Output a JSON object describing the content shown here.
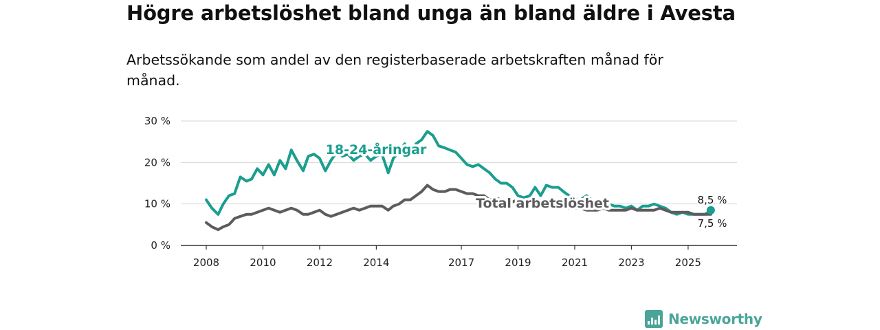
{
  "header": {
    "title": "Högre arbetslöshet bland unga än bland äldre i Avesta",
    "subtitle": "Arbetssökande som andel av den registerbaserade arbetskraften månad för månad."
  },
  "chart_data": {
    "type": "line",
    "title": "Högre arbetslöshet bland unga än bland äldre i Avesta",
    "subtitle": "Arbetssökande som andel av den registerbaserade arbetskraften månad för månad.",
    "xlabel": "",
    "ylabel": "",
    "x_range": [
      2008,
      2025.9
    ],
    "ylim": [
      0,
      30
    ],
    "y_ticks": [
      0,
      10,
      20,
      30
    ],
    "y_tick_labels": [
      "0 %",
      "10 %",
      "20 %",
      "30 %"
    ],
    "x_ticks": [
      2008,
      2010,
      2012,
      2014,
      2017,
      2019,
      2021,
      2023,
      2025
    ],
    "x_tick_labels": [
      "2008",
      "2010",
      "2012",
      "2014",
      "2017",
      "2019",
      "2021",
      "2023",
      "2025"
    ],
    "grid": true,
    "series": [
      {
        "name": "18-24-åringar",
        "color": "#1a9e8f",
        "x": [
          2008.0,
          2008.2,
          2008.42,
          2008.6,
          2008.8,
          2009.0,
          2009.2,
          2009.42,
          2009.6,
          2009.8,
          2010.0,
          2010.2,
          2010.4,
          2010.6,
          2010.8,
          2011.0,
          2011.2,
          2011.42,
          2011.6,
          2011.8,
          2012.0,
          2012.2,
          2012.4,
          2012.6,
          2012.8,
          2013.0,
          2013.2,
          2013.4,
          2013.6,
          2013.8,
          2014.0,
          2014.2,
          2014.42,
          2014.6,
          2014.8,
          2015.0,
          2015.2,
          2015.4,
          2015.6,
          2015.8,
          2016.0,
          2016.2,
          2016.42,
          2016.6,
          2016.8,
          2017.0,
          2017.2,
          2017.4,
          2017.6,
          2017.8,
          2018.0,
          2018.2,
          2018.4,
          2018.6,
          2018.8,
          2019.0,
          2019.2,
          2019.42,
          2019.6,
          2019.8,
          2020.0,
          2020.2,
          2020.42,
          2020.6,
          2020.8,
          2021.0,
          2021.2,
          2021.42,
          2021.6,
          2021.8,
          2022.0,
          2022.2,
          2022.4,
          2022.6,
          2022.8,
          2023.0,
          2023.2,
          2023.4,
          2023.6,
          2023.8,
          2024.0,
          2024.2,
          2024.4,
          2024.6,
          2024.8,
          2025.0,
          2025.2,
          2025.4,
          2025.6,
          2025.8
        ],
        "values": [
          11,
          9,
          7.5,
          10,
          12,
          12.5,
          16.5,
          15.5,
          16,
          18.5,
          17,
          19.5,
          17,
          20.5,
          18.5,
          23,
          20.5,
          18,
          21.5,
          22,
          21,
          18,
          20.5,
          22.5,
          21.5,
          22,
          20.5,
          21.5,
          22,
          20.5,
          21.5,
          22,
          17.5,
          21,
          22.5,
          24.5,
          22.5,
          24.5,
          25.5,
          27.5,
          26.5,
          24,
          23.5,
          23,
          22.5,
          21,
          19.5,
          19,
          19.5,
          18.5,
          17.5,
          16,
          15,
          15,
          14,
          12,
          11.5,
          12,
          14,
          12,
          14.5,
          14,
          14,
          13,
          12,
          11,
          11,
          12,
          11,
          10.5,
          10.5,
          10,
          9.5,
          9.5,
          9,
          9.5,
          8.5,
          9.5,
          9.5,
          10,
          9.5,
          9,
          8,
          7.5,
          8,
          7.5,
          7.5,
          7.5,
          7.5,
          8.5
        ]
      },
      {
        "name": "Total arbetslöshet",
        "color": "#5e5b5f",
        "x": [
          2008.0,
          2008.2,
          2008.42,
          2008.6,
          2008.8,
          2009.0,
          2009.2,
          2009.42,
          2009.6,
          2009.8,
          2010.0,
          2010.2,
          2010.4,
          2010.6,
          2010.8,
          2011.0,
          2011.2,
          2011.42,
          2011.6,
          2011.8,
          2012.0,
          2012.2,
          2012.4,
          2012.6,
          2012.8,
          2013.0,
          2013.2,
          2013.4,
          2013.6,
          2013.8,
          2014.0,
          2014.2,
          2014.42,
          2014.6,
          2014.8,
          2015.0,
          2015.2,
          2015.4,
          2015.6,
          2015.8,
          2016.0,
          2016.2,
          2016.42,
          2016.6,
          2016.8,
          2017.0,
          2017.2,
          2017.4,
          2017.6,
          2017.8,
          2018.0,
          2018.2,
          2018.4,
          2018.6,
          2018.8,
          2019.0,
          2019.2,
          2019.42,
          2019.6,
          2019.8,
          2020.0,
          2020.2,
          2020.42,
          2020.6,
          2020.8,
          2021.0,
          2021.2,
          2021.42,
          2021.6,
          2021.8,
          2022.0,
          2022.2,
          2022.4,
          2022.6,
          2022.8,
          2023.0,
          2023.2,
          2023.4,
          2023.6,
          2023.8,
          2024.0,
          2024.2,
          2024.4,
          2024.6,
          2024.8,
          2025.0,
          2025.2,
          2025.4,
          2025.6,
          2025.8
        ],
        "values": [
          5.5,
          4.5,
          3.8,
          4.5,
          5,
          6.5,
          7,
          7.5,
          7.5,
          8,
          8.5,
          9,
          8.5,
          8,
          8.5,
          9,
          8.5,
          7.5,
          7.5,
          8,
          8.5,
          7.5,
          7,
          7.5,
          8,
          8.5,
          9,
          8.5,
          9,
          9.5,
          9.5,
          9.5,
          8.5,
          9.5,
          10,
          11,
          11,
          12,
          13,
          14.5,
          13.5,
          13,
          13,
          13.5,
          13.5,
          13,
          12.5,
          12.5,
          12,
          12,
          11,
          11.5,
          11,
          11,
          10.5,
          11,
          10.5,
          10.5,
          10,
          9.5,
          9.5,
          9.5,
          9.5,
          9,
          9,
          9,
          9,
          8.5,
          8.5,
          8.5,
          9,
          8.5,
          8.5,
          8.5,
          8.5,
          9,
          8.5,
          8.5,
          8.5,
          8.5,
          9,
          8.5,
          8,
          8,
          8,
          8,
          7.5,
          7.5,
          7.5,
          7.5
        ]
      }
    ],
    "annotations": [
      {
        "text": "18-24-åringar",
        "series": "18-24-åringar"
      },
      {
        "text": "Total arbetslöshet",
        "series": "Total arbetslöshet"
      },
      {
        "text": "8,5 %",
        "series": "18-24-åringar",
        "value": 8.5
      },
      {
        "text": "7,5 %",
        "series": "Total arbetslöshet",
        "value": 7.5
      }
    ]
  },
  "branding": {
    "logo_text": "Newsworthy",
    "color": "#4aa598"
  }
}
